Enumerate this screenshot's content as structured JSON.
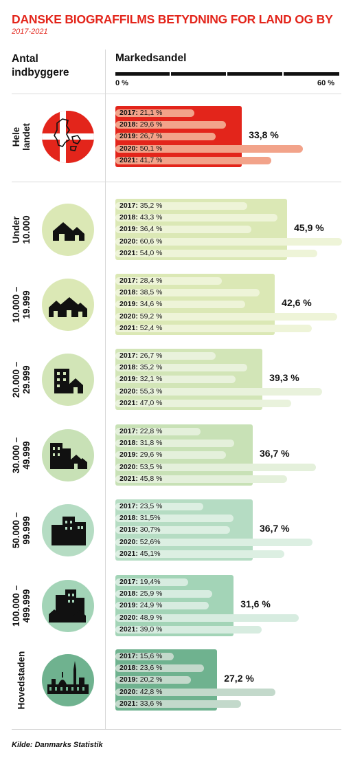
{
  "title": "DANSKE BIOGRAFFILMS BETYDNING FOR LAND OG BY",
  "subtitle": "2017-2021",
  "header": {
    "left_label": "Antal indbyggere",
    "right_label": "Markedsandel",
    "scale_min": "0 %",
    "scale_max": "60 %"
  },
  "source": "Kilde: Danmarks Statistik",
  "chart_data": {
    "type": "bar",
    "title": "DANSKE BIOGRAFFILMS BETYDNING FOR LAND OG BY",
    "subtitle": "2017-2021",
    "xlabel": "Markedsandel",
    "ylabel": "Antal indbyggere",
    "xlim": [
      0,
      60
    ],
    "groups": [
      {
        "label": "Hele\nlandet",
        "icon": "denmark-flag-map-icon",
        "average": 33.8,
        "average_label": "33,8 %",
        "box_color": "#e3251b",
        "bar_color": "#f2a38a",
        "text_color": "#ffffff",
        "years": [
          {
            "year": "2017:",
            "value": 21.1,
            "label": "21,1 %"
          },
          {
            "year": "2018:",
            "value": 29.6,
            "label": "29,6 %"
          },
          {
            "year": "2019:",
            "value": 26.7,
            "label": "26,7 %"
          },
          {
            "year": "2020:",
            "value": 50.1,
            "label": "50,1 %"
          },
          {
            "year": "2021:",
            "value": 41.7,
            "label": "41,7 %"
          }
        ]
      },
      {
        "label": "Under\n10.000",
        "icon": "two-houses-icon",
        "average": 45.9,
        "average_label": "45,9 %",
        "box_color": "#dbe8b5",
        "bar_color": "#eef4d8",
        "text_color": "#111111",
        "years": [
          {
            "year": "2017:",
            "value": 35.2,
            "label": "35,2 %"
          },
          {
            "year": "2018:",
            "value": 43.3,
            "label": "43,3 %"
          },
          {
            "year": "2019:",
            "value": 36.4,
            "label": "36,4 %"
          },
          {
            "year": "2020:",
            "value": 60.6,
            "label": "60,6 %"
          },
          {
            "year": "2021:",
            "value": 54.0,
            "label": "54,0 %"
          }
        ]
      },
      {
        "label": "10.000 –\n19.999",
        "icon": "three-houses-icon",
        "average": 42.6,
        "average_label": "42,6 %",
        "box_color": "#dbe8b5",
        "bar_color": "#eef4d8",
        "text_color": "#111111",
        "years": [
          {
            "year": "2017:",
            "value": 28.4,
            "label": "28,4 %"
          },
          {
            "year": "2018:",
            "value": 38.5,
            "label": "38,5 %"
          },
          {
            "year": "2019:",
            "value": 34.6,
            "label": "34,6 %"
          },
          {
            "year": "2020:",
            "value": 59.2,
            "label": "59,2 %"
          },
          {
            "year": "2021:",
            "value": 52.4,
            "label": "52,4 %"
          }
        ]
      },
      {
        "label": "20.000 –\n29.999",
        "icon": "apartment-and-house-icon",
        "average": 39.3,
        "average_label": "39,3 %",
        "box_color": "#d2e5b7",
        "bar_color": "#e9f2dc",
        "text_color": "#111111",
        "years": [
          {
            "year": "2017:",
            "value": 26.7,
            "label": "26,7 %"
          },
          {
            "year": "2018:",
            "value": 35.2,
            "label": "35,2 %"
          },
          {
            "year": "2019:",
            "value": 32.1,
            "label": "32,1 %"
          },
          {
            "year": "2020:",
            "value": 55.3,
            "label": "55,3 %"
          },
          {
            "year": "2021:",
            "value": 47.0,
            "label": "47,0 %"
          }
        ]
      },
      {
        "label": "30.000 –\n49.999",
        "icon": "apartments-and-houses-icon",
        "average": 36.7,
        "average_label": "36,7 %",
        "box_color": "#c8e1b6",
        "bar_color": "#e4f0db",
        "text_color": "#111111",
        "years": [
          {
            "year": "2017:",
            "value": 22.8,
            "label": "22,8 %"
          },
          {
            "year": "2018:",
            "value": 31.8,
            "label": "31,8 %"
          },
          {
            "year": "2019:",
            "value": 29.6,
            "label": "29,6 %"
          },
          {
            "year": "2020:",
            "value": 53.5,
            "label": "53,5 %"
          },
          {
            "year": "2021:",
            "value": 45.8,
            "label": "45,8 %"
          }
        ]
      },
      {
        "label": "50.000 –\n99.999",
        "icon": "apartment-blocks-icon",
        "average": 36.7,
        "average_label": "36,7 %",
        "box_color": "#b5dcc3",
        "bar_color": "#dcefe2",
        "text_color": "#111111",
        "years": [
          {
            "year": "2017:",
            "value": 23.5,
            "label": "23,5 %"
          },
          {
            "year": "2018:",
            "value": 31.5,
            "label": "31,5%"
          },
          {
            "year": "2019:",
            "value": 30.7,
            "label": "30,7%"
          },
          {
            "year": "2020:",
            "value": 52.6,
            "label": "52,6%"
          },
          {
            "year": "2021:",
            "value": 45.1,
            "label": "45,1%"
          }
        ]
      },
      {
        "label": "100.000 –\n499.999",
        "icon": "city-skyline-icon",
        "average": 31.6,
        "average_label": "31,6 %",
        "box_color": "#a3d4b7",
        "bar_color": "#d7ece0",
        "text_color": "#111111",
        "years": [
          {
            "year": "2017:",
            "value": 19.4,
            "label": "19,4%"
          },
          {
            "year": "2018:",
            "value": 25.9,
            "label": "25,9 %"
          },
          {
            "year": "2019:",
            "value": 24.9,
            "label": "24,9 %"
          },
          {
            "year": "2020:",
            "value": 48.9,
            "label": "48,9 %"
          },
          {
            "year": "2021:",
            "value": 39.0,
            "label": "39,0 %"
          }
        ]
      },
      {
        "label": "Hovedstaden",
        "icon": "copenhagen-skyline-icon",
        "average": 27.2,
        "average_label": "27,2 %",
        "box_color": "#6fb28f",
        "bar_color": "#c3d9cb",
        "text_color": "#111111",
        "years": [
          {
            "year": "2017:",
            "value": 15.6,
            "label": "15,6 %"
          },
          {
            "year": "2018:",
            "value": 23.6,
            "label": "23,6 %"
          },
          {
            "year": "2019:",
            "value": 20.2,
            "label": "20,2 %"
          },
          {
            "year": "2020:",
            "value": 42.8,
            "label": "42,8 %"
          },
          {
            "year": "2021:",
            "value": 33.6,
            "label": "33,6 %"
          }
        ]
      }
    ]
  }
}
